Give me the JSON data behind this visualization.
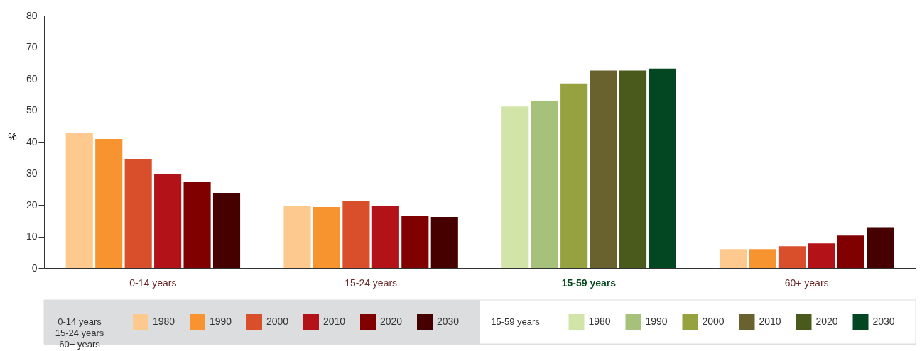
{
  "chart_data": {
    "type": "bar",
    "ylabel": "%",
    "categories": [
      "0-14 years",
      "15-24 years",
      "15-59 years",
      "60+ years"
    ],
    "series": [
      {
        "name": "1980",
        "color": "#fdc98f",
        "values": [
          42.7,
          19.6,
          null,
          6.0
        ]
      },
      {
        "name": "1990",
        "color": "#f79430",
        "values": [
          40.9,
          19.3,
          null,
          6.0
        ]
      },
      {
        "name": "2000",
        "color": "#d94e2b",
        "values": [
          34.6,
          21.1,
          null,
          6.9
        ]
      },
      {
        "name": "2010",
        "color": "#b31318",
        "values": [
          29.7,
          19.6,
          null,
          7.8
        ]
      },
      {
        "name": "2020",
        "color": "#800000",
        "values": [
          27.4,
          16.6,
          null,
          10.3
        ]
      },
      {
        "name": "2030",
        "color": "#470000",
        "values": [
          23.8,
          16.2,
          null,
          12.9
        ]
      },
      {
        "name": "1980",
        "color": "#d3e4a9",
        "values": [
          null,
          null,
          51.2,
          null
        ]
      },
      {
        "name": "1990",
        "color": "#a5c17a",
        "values": [
          null,
          null,
          52.9,
          null
        ]
      },
      {
        "name": "2000",
        "color": "#96a23f",
        "values": [
          null,
          null,
          58.5,
          null
        ]
      },
      {
        "name": "2010",
        "color": "#69622e",
        "values": [
          null,
          null,
          62.6,
          null
        ]
      },
      {
        "name": "2020",
        "color": "#4a5a1c",
        "values": [
          null,
          null,
          62.6,
          null
        ]
      },
      {
        "name": "2030",
        "color": "#034622",
        "values": [
          null,
          null,
          63.2,
          null
        ]
      }
    ],
    "annotations": [
      "0-14 years\n15-24 years\n60+ years",
      "15-59 years"
    ],
    "ylim": [
      0,
      80
    ],
    "yticks": [
      0,
      10,
      20,
      30,
      40,
      50,
      60,
      70,
      80
    ],
    "grid": false,
    "legend": "bottom"
  }
}
